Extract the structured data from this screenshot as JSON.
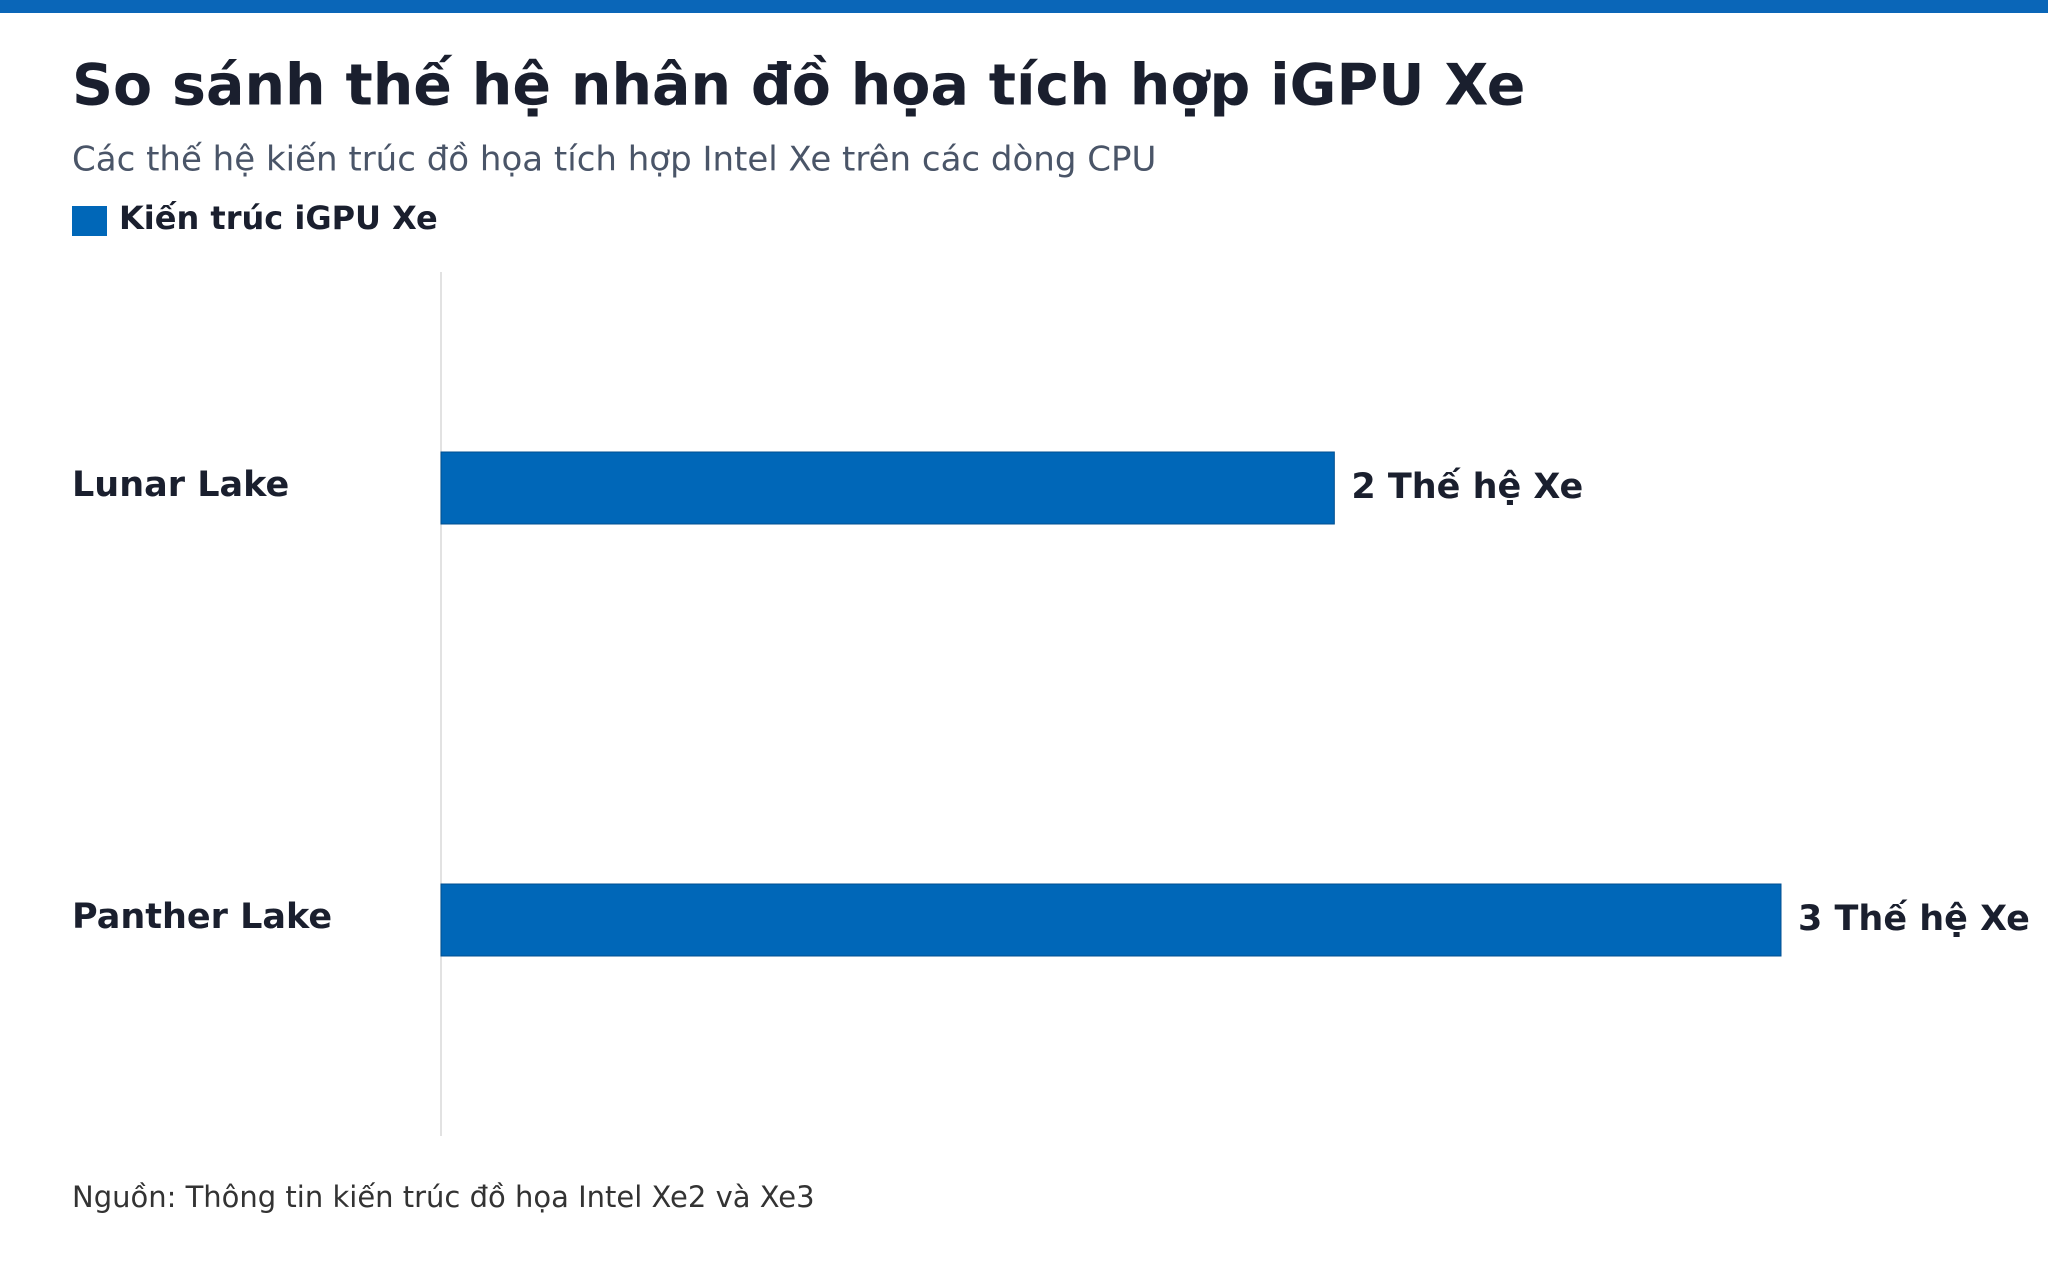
{
  "chart_data": {
    "type": "hbar",
    "title": "So sánh thế hệ nhân đồ họa tích hợp iGPU Xe",
    "subtitle": "Các thế hệ kiến trúc đồ họa tích hợp Intel Xe trên các dòng CPU",
    "categories": [
      "Lunar Lake",
      "Panther Lake"
    ],
    "series": [
      {
        "name": "Kiến trúc iGPU Xe",
        "color": "#0067b8",
        "values": [
          2,
          3
        ],
        "value_labels": [
          "2 Thế hệ Xe",
          "3 Thế hệ Xe"
        ]
      }
    ],
    "source": "Nguồn: Thông tin kiến trúc đồ họa Intel Xe2 và Xe3"
  }
}
